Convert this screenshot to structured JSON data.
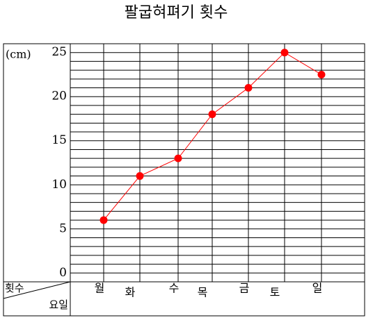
{
  "chart_data": {
    "type": "line",
    "title": "팔굽혀펴기 횟수",
    "unit": "(cm)",
    "y_label": "횟수",
    "x_label": "요일",
    "categories": [
      "월",
      "화",
      "수",
      "목",
      "금",
      "토",
      "일"
    ],
    "values": [
      6,
      11,
      13,
      18,
      21,
      25,
      22.5
    ],
    "color": "#ff0000",
    "line_color": "#ff0000",
    "ylim": [
      -1,
      26
    ],
    "yticks": [
      0,
      5,
      10,
      15,
      20,
      25
    ],
    "y_minor_ticks": [
      1,
      2,
      3,
      4,
      6,
      7,
      8,
      9,
      11,
      12,
      13,
      14,
      16,
      17,
      18,
      19,
      21,
      22,
      23,
      24
    ],
    "grid": true
  }
}
